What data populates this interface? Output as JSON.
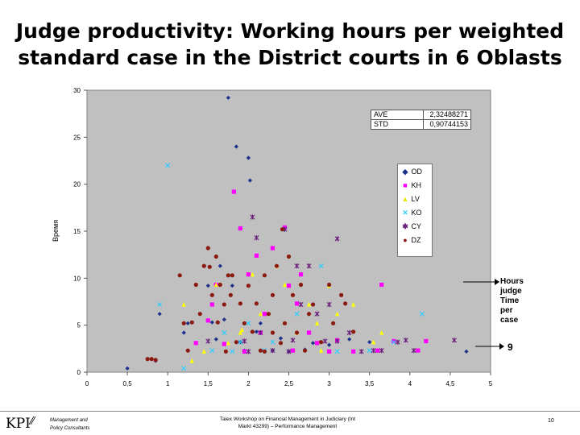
{
  "slide": {
    "title_line1": "Judge productivity: Working hours per weighted",
    "title_line2": "standard case in the District courts in 6 Oblasts",
    "page_number": "10"
  },
  "footer": {
    "logo_text": "KPI",
    "logo_sub1": "Management and",
    "logo_sub2": "Policy Consultants",
    "center_text": "Taiex Workshop on Financial Management in Judiciary (Int Markt 43299) – Performance Management"
  },
  "colors": {
    "plot_bg": "#c0c0c0",
    "OD": "#1a2f8a",
    "KH": "#ff00ff",
    "LV": "#ffff00",
    "KO": "#33ccff",
    "CY": "#6a1b7a",
    "DZ": "#8b1a10"
  },
  "chart_data": {
    "type": "scatter",
    "title": "",
    "xlabel": "",
    "ylabel": "Время",
    "xlim": [
      0,
      5
    ],
    "ylim": [
      0,
      30
    ],
    "xticks": [
      "0",
      "0,5",
      "1",
      "1,5",
      "2",
      "2,5",
      "3",
      "3,5",
      "4",
      "4,5",
      "5"
    ],
    "yticks": [
      "0",
      "5",
      "10",
      "15",
      "20",
      "25",
      "30"
    ],
    "grid": false,
    "legend_position": "right",
    "stats_table": [
      {
        "label": "AVE",
        "value": "2,32488271"
      },
      {
        "label": "STD",
        "value": "0,90744153"
      }
    ],
    "annotation": {
      "text_lines": [
        "Hours",
        "judge",
        "Time",
        "per",
        "case"
      ],
      "value": "9"
    },
    "series": [
      {
        "name": "OD",
        "marker": "diamond",
        "points": [
          [
            0.5,
            0.4
          ],
          [
            0.85,
            1.2
          ],
          [
            0.9,
            6.2
          ],
          [
            1.2,
            4.2
          ],
          [
            1.25,
            5.2
          ],
          [
            1.5,
            9.2
          ],
          [
            1.55,
            5.3
          ],
          [
            1.6,
            3.5
          ],
          [
            1.65,
            11.3
          ],
          [
            1.7,
            5.6
          ],
          [
            1.75,
            29.2
          ],
          [
            1.8,
            9.2
          ],
          [
            1.85,
            24.0
          ],
          [
            1.9,
            3.2
          ],
          [
            1.95,
            2.3
          ],
          [
            2.0,
            22.8
          ],
          [
            2.02,
            20.4
          ],
          [
            2.1,
            4.3
          ],
          [
            2.15,
            5.2
          ],
          [
            2.3,
            2.3
          ],
          [
            2.4,
            3.6
          ],
          [
            2.5,
            2.2
          ],
          [
            2.7,
            2.4
          ],
          [
            2.8,
            3.1
          ],
          [
            3.0,
            2.9
          ],
          [
            3.25,
            3.5
          ],
          [
            3.5,
            3.2
          ],
          [
            4.7,
            2.2
          ]
        ]
      },
      {
        "name": "KH",
        "marker": "square",
        "points": [
          [
            1.35,
            3.1
          ],
          [
            1.5,
            5.5
          ],
          [
            1.55,
            7.2
          ],
          [
            1.6,
            9.3
          ],
          [
            1.7,
            3.0
          ],
          [
            1.82,
            19.2
          ],
          [
            1.9,
            15.3
          ],
          [
            1.95,
            2.2
          ],
          [
            2.0,
            10.4
          ],
          [
            2.1,
            12.4
          ],
          [
            2.15,
            4.2
          ],
          [
            2.2,
            6.2
          ],
          [
            2.3,
            13.2
          ],
          [
            2.45,
            15.4
          ],
          [
            2.5,
            9.2
          ],
          [
            2.55,
            2.3
          ],
          [
            2.6,
            7.3
          ],
          [
            2.65,
            10.4
          ],
          [
            2.75,
            4.2
          ],
          [
            2.85,
            3.1
          ],
          [
            3.0,
            2.2
          ],
          [
            3.1,
            3.4
          ],
          [
            3.3,
            2.2
          ],
          [
            3.6,
            2.3
          ],
          [
            3.65,
            9.3
          ],
          [
            3.8,
            3.3
          ],
          [
            4.1,
            2.3
          ],
          [
            4.2,
            3.3
          ]
        ]
      },
      {
        "name": "LV",
        "marker": "triangle",
        "points": [
          [
            1.2,
            7.2
          ],
          [
            1.3,
            1.2
          ],
          [
            1.45,
            2.2
          ],
          [
            1.6,
            9.3
          ],
          [
            1.75,
            3.1
          ],
          [
            1.9,
            4.2
          ],
          [
            1.92,
            4.5
          ],
          [
            2.05,
            10.4
          ],
          [
            2.15,
            6.2
          ],
          [
            2.35,
            11.3
          ],
          [
            2.45,
            9.3
          ],
          [
            2.6,
            4.2
          ],
          [
            2.75,
            7.2
          ],
          [
            2.85,
            5.2
          ],
          [
            2.9,
            2.3
          ],
          [
            3.0,
            9.2
          ],
          [
            3.1,
            6.2
          ],
          [
            3.3,
            7.2
          ],
          [
            3.55,
            3.2
          ],
          [
            3.65,
            4.2
          ]
        ]
      },
      {
        "name": "KO",
        "marker": "x",
        "points": [
          [
            0.9,
            7.2
          ],
          [
            1.0,
            22.0
          ],
          [
            1.2,
            0.4
          ],
          [
            1.55,
            2.3
          ],
          [
            1.7,
            4.2
          ],
          [
            1.8,
            2.2
          ],
          [
            1.9,
            3.2
          ],
          [
            2.0,
            5.2
          ],
          [
            2.2,
            2.3
          ],
          [
            2.3,
            3.2
          ],
          [
            2.45,
            15.2
          ],
          [
            2.6,
            6.2
          ],
          [
            2.9,
            11.3
          ],
          [
            3.1,
            2.2
          ],
          [
            3.5,
            2.3
          ],
          [
            3.8,
            3.2
          ],
          [
            4.15,
            6.2
          ]
        ]
      },
      {
        "name": "CY",
        "marker": "star",
        "points": [
          [
            1.5,
            3.3
          ],
          [
            1.95,
            3.3
          ],
          [
            2.0,
            2.2
          ],
          [
            2.05,
            16.5
          ],
          [
            2.15,
            4.2
          ],
          [
            2.3,
            2.3
          ],
          [
            2.45,
            15.2
          ],
          [
            2.5,
            2.2
          ],
          [
            2.55,
            3.4
          ],
          [
            2.6,
            11.3
          ],
          [
            2.65,
            7.2
          ],
          [
            2.75,
            11.3
          ],
          [
            2.85,
            6.2
          ],
          [
            2.95,
            3.3
          ],
          [
            3.0,
            7.2
          ],
          [
            3.1,
            3.3
          ],
          [
            3.25,
            4.2
          ],
          [
            3.4,
            2.2
          ],
          [
            3.55,
            2.3
          ],
          [
            3.65,
            2.3
          ],
          [
            3.85,
            3.2
          ],
          [
            3.95,
            3.4
          ],
          [
            4.05,
            2.3
          ],
          [
            4.55,
            3.4
          ],
          [
            2.1,
            14.3
          ],
          [
            3.1,
            14.2
          ]
        ]
      },
      {
        "name": "DZ",
        "marker": "circle",
        "points": [
          [
            0.75,
            1.4
          ],
          [
            0.8,
            1.4
          ],
          [
            1.15,
            10.3
          ],
          [
            1.2,
            5.2
          ],
          [
            1.25,
            2.3
          ],
          [
            1.35,
            9.3
          ],
          [
            1.45,
            11.3
          ],
          [
            1.5,
            13.2
          ],
          [
            1.52,
            11.2
          ],
          [
            1.55,
            8.2
          ],
          [
            1.6,
            12.3
          ],
          [
            1.62,
            5.3
          ],
          [
            1.65,
            9.3
          ],
          [
            1.7,
            7.2
          ],
          [
            1.72,
            2.2
          ],
          [
            1.75,
            10.3
          ],
          [
            1.78,
            8.2
          ],
          [
            1.8,
            10.3
          ],
          [
            1.85,
            3.2
          ],
          [
            1.9,
            7.3
          ],
          [
            1.95,
            5.2
          ],
          [
            2.0,
            9.2
          ],
          [
            2.05,
            4.3
          ],
          [
            2.1,
            7.3
          ],
          [
            2.15,
            2.3
          ],
          [
            2.2,
            10.3
          ],
          [
            2.25,
            6.2
          ],
          [
            2.3,
            8.2
          ],
          [
            2.35,
            11.3
          ],
          [
            2.4,
            3.1
          ],
          [
            2.42,
            15.2
          ],
          [
            2.45,
            5.2
          ],
          [
            2.5,
            12.3
          ],
          [
            2.55,
            8.2
          ],
          [
            2.6,
            4.2
          ],
          [
            2.65,
            9.3
          ],
          [
            2.7,
            2.3
          ],
          [
            2.75,
            6.2
          ],
          [
            2.8,
            7.2
          ],
          [
            2.9,
            3.2
          ],
          [
            3.0,
            9.3
          ],
          [
            3.05,
            5.2
          ],
          [
            3.15,
            8.2
          ],
          [
            3.2,
            7.3
          ],
          [
            3.3,
            4.3
          ],
          [
            1.3,
            5.3
          ],
          [
            1.4,
            6.2
          ],
          [
            2.2,
            2.2
          ],
          [
            2.3,
            4.2
          ],
          [
            0.85,
            1.3
          ]
        ]
      }
    ]
  }
}
